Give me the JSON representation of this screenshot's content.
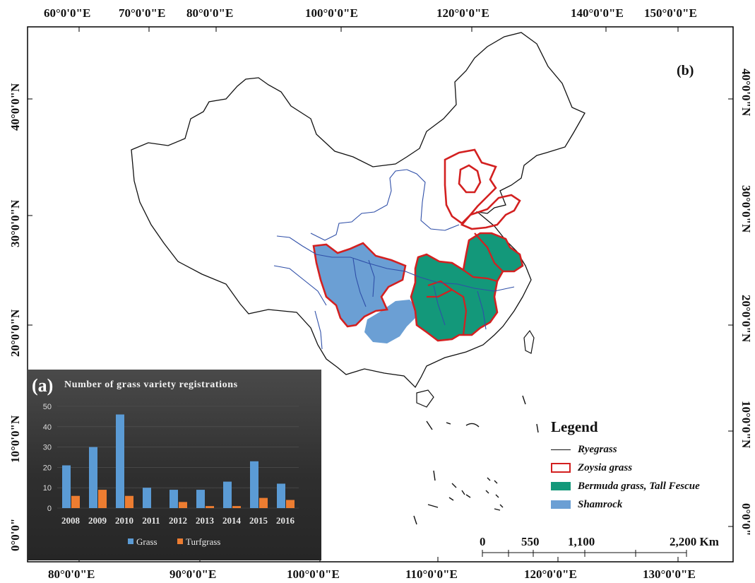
{
  "panel_tag": "(b)",
  "top_longitudes": [
    "60°0'0\"E",
    "70°0'0\"E",
    "80°0'0\"E",
    "100°0'0\"E",
    "120°0'0\"E",
    "140°0'0\"E",
    "150°0'0\"E"
  ],
  "bottom_longitudes": [
    "80°0'0\"E",
    "90°0'0\"E",
    "100°0'0\"E",
    "110°0'0\"E",
    "120°0'0\"E",
    "130°0'0\"E"
  ],
  "left_latitudes": [
    "40°0'0\"N",
    "30°0'0\"N",
    "20°0'0\"N",
    "10°0'0\"N",
    "0°0'0\""
  ],
  "right_latitudes": [
    "40°0'0\"N",
    "30°0'0\"N",
    "20°0'0\"N",
    "10°0'0\"N",
    "0°0'0\""
  ],
  "legend": {
    "title": "Legend",
    "items": [
      {
        "label": "Ryegrass",
        "kind": "line",
        "color": "#111111"
      },
      {
        "label": "Zoysia grass",
        "kind": "outline",
        "color": "#d32020"
      },
      {
        "label": "Bermuda grass, Tall Fescue",
        "kind": "fill",
        "color": "#13987a"
      },
      {
        "label": "Shamrock",
        "kind": "fill",
        "color": "#6b9fd4"
      }
    ]
  },
  "scale_bar": {
    "labels": [
      "0",
      "550",
      "1,100",
      "2,200 Km"
    ]
  },
  "colors": {
    "river": "#2f4fa8",
    "zoysia": "#d32020",
    "bermuda": "#13987a",
    "shamrock": "#6b9fd4",
    "grass_bar": "#5b9bd5",
    "turf_bar": "#ed7d31"
  },
  "inset": {
    "tag": "(a)",
    "chart_data": {
      "type": "bar",
      "title": "Number of grass variety registrations",
      "categories": [
        "2008",
        "2009",
        "2010",
        "2011",
        "2012",
        "2013",
        "2014",
        "2015",
        "2016"
      ],
      "series": [
        {
          "name": "Grass",
          "values": [
            21,
            30,
            46,
            10,
            9,
            9,
            13,
            23,
            12
          ]
        },
        {
          "name": "Turfgrass",
          "values": [
            6,
            9,
            6,
            0,
            3,
            1,
            1,
            5,
            4
          ]
        }
      ],
      "yticks": [
        "50",
        "40",
        "30",
        "20",
        "10",
        "0"
      ],
      "ylim": [
        0,
        50
      ],
      "legend_position": "bottom"
    }
  }
}
